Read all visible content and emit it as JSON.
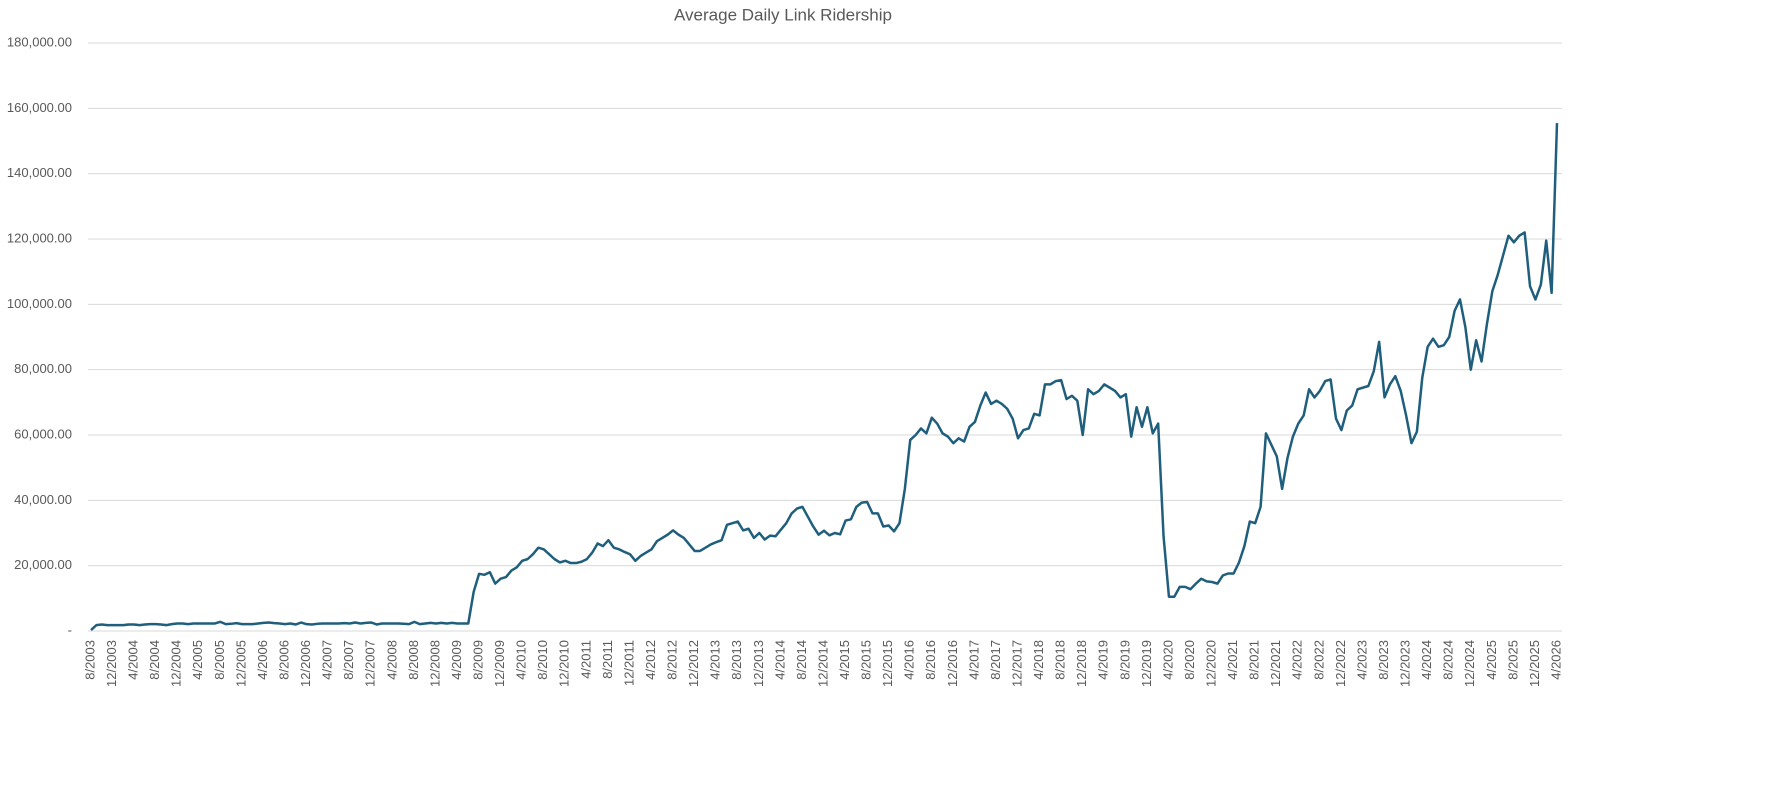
{
  "chart_data": {
    "type": "line",
    "title": "Average Daily Link Ridership",
    "categories": [
      "8/2003",
      null,
      null,
      null,
      "12/2003",
      null,
      null,
      null,
      "4/2004",
      null,
      null,
      null,
      "8/2004",
      null,
      null,
      null,
      "12/2004",
      null,
      null,
      null,
      "4/2005",
      null,
      null,
      null,
      "8/2005",
      null,
      null,
      null,
      "12/2005",
      null,
      null,
      null,
      "4/2006",
      null,
      null,
      null,
      "8/2006",
      null,
      null,
      null,
      "12/2006",
      null,
      null,
      null,
      "4/2007",
      null,
      null,
      null,
      "8/2007",
      null,
      null,
      null,
      "12/2007",
      null,
      null,
      null,
      "4/2008",
      null,
      null,
      null,
      "8/2008",
      null,
      null,
      null,
      "12/2008",
      null,
      null,
      null,
      "4/2009",
      null,
      null,
      null,
      "8/2009",
      null,
      null,
      null,
      "12/2009",
      null,
      null,
      null,
      "4/2010",
      null,
      null,
      null,
      "8/2010",
      null,
      null,
      null,
      "12/2010",
      null,
      null,
      null,
      "4/2011",
      null,
      null,
      null,
      "8/2011",
      null,
      null,
      null,
      "12/2011",
      null,
      null,
      null,
      "4/2012",
      null,
      null,
      null,
      "8/2012",
      null,
      null,
      null,
      "12/2012",
      null,
      null,
      null,
      "4/2013",
      null,
      null,
      null,
      "8/2013",
      null,
      null,
      null,
      "12/2013",
      null,
      null,
      null,
      "4/2014",
      null,
      null,
      null,
      "8/2014",
      null,
      null,
      null,
      "12/2014",
      null,
      null,
      null,
      "4/2015",
      null,
      null,
      null,
      "8/2015",
      null,
      null,
      null,
      "12/2015",
      null,
      null,
      null,
      "4/2016",
      null,
      null,
      null,
      "8/2016",
      null,
      null,
      null,
      "12/2016",
      null,
      null,
      null,
      "4/2017",
      null,
      null,
      null,
      "8/2017",
      null,
      null,
      null,
      "12/2017",
      null,
      null,
      null,
      "4/2018",
      null,
      null,
      null,
      "8/2018",
      null,
      null,
      null,
      "12/2018",
      null,
      null,
      null,
      "4/2019",
      null,
      null,
      null,
      "8/2019",
      null,
      null,
      null,
      "12/2019",
      null,
      null,
      null,
      "4/2020",
      null,
      null,
      null,
      "8/2020",
      null,
      null,
      null,
      "12/2020",
      null,
      null,
      null,
      "4/2021",
      null,
      null,
      null,
      "8/2021",
      null,
      null,
      null,
      "12/2021",
      null,
      null,
      null,
      "4/2022",
      null,
      null,
      null,
      "8/2022",
      null,
      null,
      null,
      "12/2022",
      null,
      null,
      null,
      "4/2023",
      null,
      null,
      null,
      "8/2023",
      null,
      null,
      null,
      "12/2023",
      null,
      null,
      null,
      "4/2024",
      null,
      null,
      null,
      "8/2024",
      null,
      null,
      null,
      "12/2024",
      null,
      null,
      null,
      "4/2025",
      null,
      null,
      null,
      "8/2025",
      null,
      null,
      null,
      "12/2025",
      null,
      null,
      null,
      "4/2026"
    ],
    "values": [
      300,
      1800,
      2000,
      1800,
      1800,
      1800,
      1800,
      2000,
      2000,
      1800,
      2000,
      2100,
      2100,
      2000,
      1800,
      2100,
      2300,
      2300,
      2100,
      2300,
      2300,
      2300,
      2300,
      2300,
      2800,
      2100,
      2200,
      2400,
      2100,
      2100,
      2100,
      2300,
      2500,
      2600,
      2400,
      2300,
      2100,
      2300,
      2000,
      2600,
      2100,
      2000,
      2200,
      2300,
      2300,
      2300,
      2300,
      2400,
      2300,
      2600,
      2300,
      2500,
      2600,
      2000,
      2300,
      2300,
      2300,
      2300,
      2200,
      2100,
      2800,
      2100,
      2300,
      2500,
      2300,
      2500,
      2300,
      2500,
      2300,
      2300,
      2300,
      12000,
      17500,
      17200,
      18000,
      14500,
      16000,
      16500,
      18500,
      19500,
      21500,
      22000,
      23500,
      25500,
      25000,
      23500,
      22000,
      21000,
      21500,
      20800,
      20800,
      21200,
      22000,
      24000,
      26800,
      26000,
      27800,
      25500,
      25000,
      24200,
      23500,
      21500,
      23000,
      24000,
      25000,
      27500,
      28500,
      29500,
      30800,
      29500,
      28500,
      26500,
      24500,
      24500,
      25500,
      26500,
      27200,
      27800,
      32500,
      33000,
      33500,
      30800,
      31300,
      28500,
      30000,
      28000,
      29200,
      29000,
      31000,
      33000,
      36000,
      37500,
      38000,
      35000,
      32000,
      29500,
      30700,
      29300,
      30000,
      29600,
      33800,
      34200,
      38000,
      39300,
      39500,
      36000,
      36000,
      32000,
      32300,
      30500,
      33000,
      43500,
      58500,
      60000,
      62000,
      60500,
      65300,
      63500,
      60500,
      59500,
      57500,
      59000,
      58000,
      62500,
      64000,
      69000,
      73000,
      69500,
      70500,
      69500,
      68000,
      65000,
      59000,
      61500,
      62000,
      66500,
      66000,
      75500,
      75500,
      76500,
      76800,
      71000,
      72000,
      70500,
      60000,
      74000,
      72500,
      73500,
      75500,
      74500,
      73500,
      71500,
      72500,
      59500,
      68500,
      62500,
      68500,
      60500,
      63500,
      29000,
      10500,
      10500,
      13500,
      13500,
      12800,
      14500,
      16000,
      15200,
      15000,
      14500,
      17000,
      17600,
      17600,
      21000,
      26000,
      33500,
      33000,
      38000,
      60500,
      57000,
      53500,
      43500,
      53000,
      59500,
      63500,
      66000,
      74000,
      71500,
      73500,
      76500,
      77000,
      65000,
      61500,
      67500,
      69000,
      74000,
      74500,
      75000,
      79500,
      88500,
      71500,
      75500,
      78000,
      73500,
      66000,
      57500,
      61000,
      77500,
      87000,
      89500,
      87000,
      87500,
      90000,
      98000,
      101500,
      93000,
      80000,
      89000,
      82500,
      94000,
      104000,
      109000,
      115000,
      121000,
      119000,
      121000,
      122000,
      105500,
      101500,
      106000,
      119500,
      103500,
      155500
    ],
    "color": "#1f5f7d",
    "ylim": [
      0,
      180000
    ],
    "yticks": [
      {
        "value": 0,
        "label": "-"
      },
      {
        "value": 20000,
        "label": "20,000.00"
      },
      {
        "value": 40000,
        "label": "40,000.00"
      },
      {
        "value": 60000,
        "label": "60,000.00"
      },
      {
        "value": 80000,
        "label": "80,000.00"
      },
      {
        "value": 100000,
        "label": "100,000.00"
      },
      {
        "value": 120000,
        "label": "120,000.00"
      },
      {
        "value": 140000,
        "label": "140,000.00"
      },
      {
        "value": 160000,
        "label": "160,000.00"
      },
      {
        "value": 180000,
        "label": "180,000.00"
      }
    ],
    "grid": true
  }
}
